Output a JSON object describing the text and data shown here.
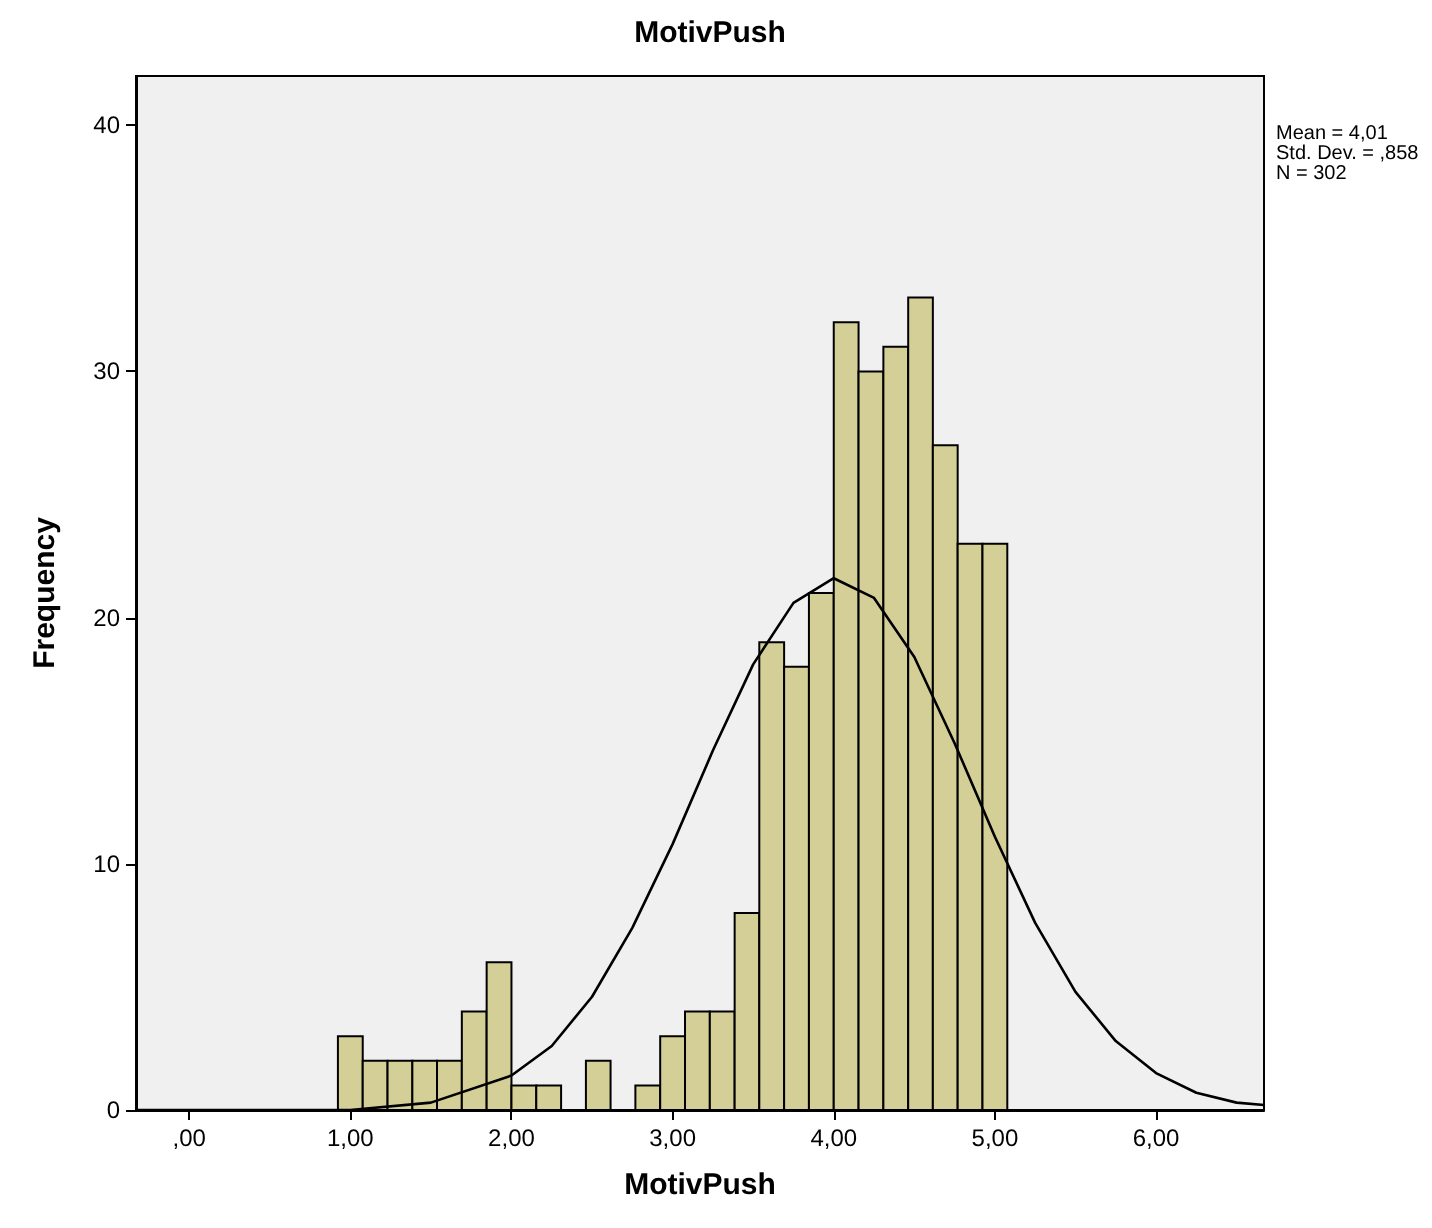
{
  "chart_data": {
    "type": "histogram",
    "title": "MotivPush",
    "xlabel": "MotivPush",
    "ylabel": "Frequency",
    "annotations": [
      "Mean = 4,01",
      "Std. Dev. = ,858",
      "N = 302"
    ],
    "bins": [
      0.923,
      1.077,
      1.231,
      1.385,
      1.538,
      1.692,
      1.846,
      2.0,
      2.154,
      2.308,
      2.462,
      2.615,
      2.769,
      2.923,
      3.077,
      3.231,
      3.385,
      3.538,
      3.692,
      3.846,
      4.0,
      4.154,
      4.308,
      4.462,
      4.615,
      4.769,
      4.923,
      5.077
    ],
    "values": [
      3,
      2,
      2,
      2,
      2,
      4,
      6,
      1,
      1,
      0,
      2,
      0,
      1,
      3,
      4,
      4,
      8,
      19,
      18,
      21,
      32,
      30,
      31,
      33,
      27,
      23,
      23
    ],
    "color": "#d4cf97",
    "series": [
      {
        "type": "line",
        "color": "#000000",
        "x": [
          -0.33,
          0,
          0.5,
          1,
          1.5,
          2,
          2.25,
          2.5,
          2.75,
          3,
          3.25,
          3.5,
          3.75,
          4,
          4.25,
          4.5,
          4.75,
          5,
          5.25,
          5.5,
          5.75,
          6,
          6.25,
          6.5,
          6.67
        ],
        "values": [
          0,
          0,
          0,
          0,
          0.3,
          1.4,
          2.6,
          4.6,
          7.4,
          10.8,
          14.6,
          18.1,
          20.6,
          21.6,
          20.8,
          18.4,
          14.9,
          11.1,
          7.6,
          4.8,
          2.8,
          1.5,
          0.7,
          0.3,
          0.2
        ]
      }
    ],
    "xlim": [
      -0.33,
      6.67
    ],
    "ylim": [
      0,
      42
    ],
    "xticks": [
      {
        "value": 0,
        "label": ",00"
      },
      {
        "value": 1,
        "label": "1,00"
      },
      {
        "value": 2,
        "label": "2,00"
      },
      {
        "value": 3,
        "label": "3,00"
      },
      {
        "value": 4,
        "label": "4,00"
      },
      {
        "value": 5,
        "label": "5,00"
      },
      {
        "value": 6,
        "label": "6,00"
      }
    ],
    "yticks": [
      0,
      10,
      20,
      30,
      40
    ],
    "grid": false,
    "marker": "none",
    "line_style": "solid"
  }
}
